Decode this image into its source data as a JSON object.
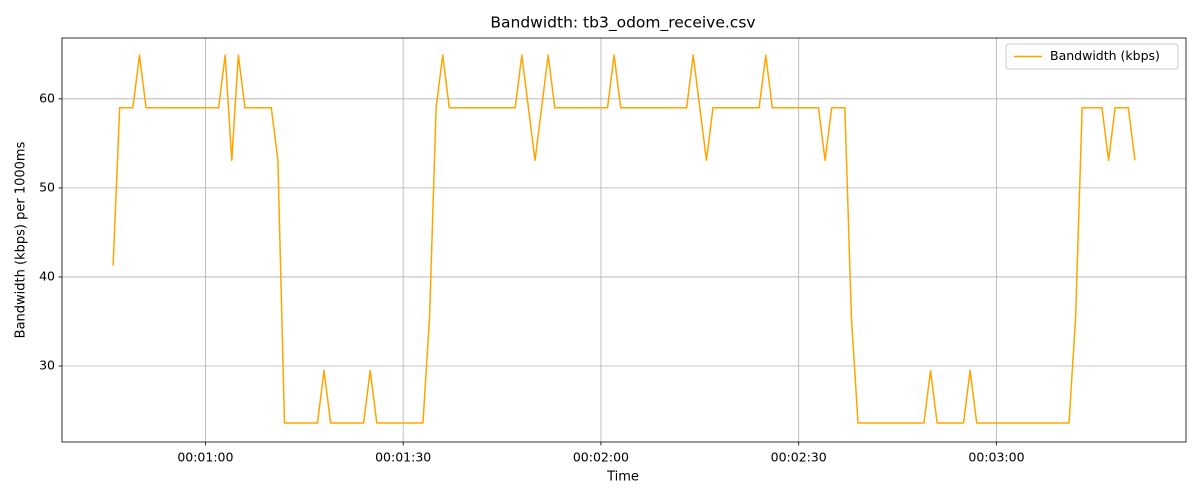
{
  "chart_data": {
    "type": "line",
    "title": "Bandwidth: tb3_odom_receive.csv",
    "x_label": "Time",
    "y_label": "Bandwidth (kbps) per 1000ms",
    "x": [
      46,
      47,
      48,
      49,
      50,
      51,
      52,
      53,
      54,
      55,
      56,
      57,
      58,
      59,
      60,
      61,
      62,
      63,
      64,
      65,
      66,
      67,
      68,
      69,
      70,
      71,
      72,
      73,
      74,
      75,
      76,
      77,
      78,
      79,
      80,
      81,
      82,
      83,
      84,
      85,
      86,
      87,
      88,
      89,
      90,
      91,
      92,
      93,
      94,
      95,
      96,
      97,
      98,
      99,
      100,
      101,
      102,
      103,
      104,
      105,
      106,
      107,
      108,
      109,
      110,
      111,
      112,
      113,
      114,
      115,
      116,
      117,
      118,
      119,
      120,
      121,
      122,
      123,
      124,
      125,
      126,
      127,
      128,
      129,
      130,
      131,
      132,
      133,
      134,
      135,
      136,
      137,
      138,
      139,
      140,
      141,
      142,
      143,
      144,
      145,
      146,
      147,
      148,
      149,
      150,
      151,
      152,
      153,
      154,
      155,
      156,
      157,
      158,
      159,
      160,
      161,
      162,
      163,
      164,
      165,
      166,
      167,
      168,
      169,
      170,
      171,
      172,
      173,
      174,
      175,
      176,
      177,
      178,
      179,
      180,
      181,
      182,
      183,
      184,
      185,
      186,
      187,
      188,
      189,
      190,
      191,
      192,
      193,
      194,
      195,
      196,
      197,
      198,
      199,
      200,
      201
    ],
    "series": [
      {
        "name": "Bandwidth (kbps)",
        "color": "#ffa500",
        "values": [
          41.3,
          59,
          59,
          59,
          64.9,
          59,
          59,
          59,
          59,
          59,
          59,
          59,
          59,
          59,
          59,
          59,
          59,
          64.9,
          53.1,
          64.9,
          59,
          59,
          59,
          59,
          59,
          53.1,
          23.6,
          23.6,
          23.6,
          23.6,
          23.6,
          23.6,
          29.5,
          23.6,
          23.6,
          23.6,
          23.6,
          23.6,
          23.6,
          29.5,
          23.6,
          23.6,
          23.6,
          23.6,
          23.6,
          23.6,
          23.6,
          23.6,
          35.4,
          59,
          64.9,
          59,
          59,
          59,
          59,
          59,
          59,
          59,
          59,
          59,
          59,
          59,
          64.9,
          59,
          53.1,
          59,
          64.9,
          59,
          59,
          59,
          59,
          59,
          59,
          59,
          59,
          59,
          64.9,
          59,
          59,
          59,
          59,
          59,
          59,
          59,
          59,
          59,
          59,
          59,
          64.9,
          59,
          53.1,
          59,
          59,
          59,
          59,
          59,
          59,
          59,
          59,
          64.9,
          59,
          59,
          59,
          59,
          59,
          59,
          59,
          59,
          53.1,
          59,
          59,
          59,
          35.4,
          23.6,
          23.6,
          23.6,
          23.6,
          23.6,
          23.6,
          23.6,
          23.6,
          23.6,
          23.6,
          23.6,
          29.5,
          23.6,
          23.6,
          23.6,
          23.6,
          23.6,
          29.5,
          23.6,
          23.6,
          23.6,
          23.6,
          23.6,
          23.6,
          23.6,
          23.6,
          23.6,
          23.6,
          23.6,
          23.6,
          23.6,
          23.6,
          23.6,
          35.4,
          59,
          59,
          59,
          59,
          53.1,
          59,
          59,
          59,
          53.1
        ]
      }
    ],
    "xlim": [
      38.25,
      208.75
    ],
    "xticks": [
      {
        "value": 60,
        "label": "00:01:00"
      },
      {
        "value": 90,
        "label": "00:01:30"
      },
      {
        "value": 120,
        "label": "00:02:00"
      },
      {
        "value": 150,
        "label": "00:02:30"
      },
      {
        "value": 180,
        "label": "00:03:00"
      }
    ],
    "ylim": [
      21.47,
      66.83
    ],
    "yticks": [
      30,
      40,
      50,
      60
    ],
    "grid": true,
    "legend": "upper right"
  }
}
